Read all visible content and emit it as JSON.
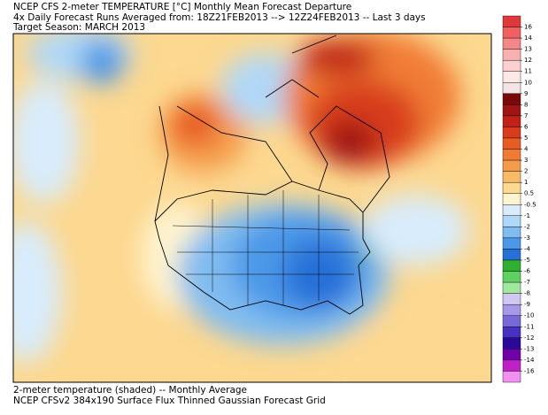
{
  "header": {
    "lines": [
      "NCEP CFS 2-meter TEMPERATURE [°C] Monthly Mean Forecast Departure",
      "4x Daily Forecast Runs Averaged from: 18Z21FEB2013 --> 12Z24FEB2013 -- Last 3 days",
      "Target Season: MARCH 2013"
    ]
  },
  "colorbar": {
    "labels": [
      16,
      14,
      13,
      12,
      11,
      10,
      9,
      8,
      7,
      6,
      5,
      4,
      3,
      2,
      1,
      0.5,
      -0.5,
      -1,
      -2,
      -3,
      -4,
      -5,
      -6,
      -7,
      -8,
      -9,
      -10,
      -11,
      -12,
      -13,
      -14,
      -16
    ],
    "colors": [
      "#e03838",
      "#f06060",
      "#f48888",
      "#f8b0b0",
      "#fcd0d0",
      "#fde8e8",
      "#f4e4e4",
      "#7a0a0a",
      "#a01414",
      "#c02018",
      "#d83c1c",
      "#e85c24",
      "#f07c34",
      "#f49c4c",
      "#f8bc68",
      "#fcd890",
      "#fff4d0",
      "#d8ecfc",
      "#b0d8f8",
      "#80bcf0",
      "#4c98e8",
      "#2870d8",
      "#30b030",
      "#60d060",
      "#a0e8a0",
      "#d0c8f0",
      "#a898e8",
      "#7868d8",
      "#4830c0",
      "#2a0898",
      "#7000a8",
      "#c020c8",
      "#f090f0"
    ]
  },
  "footer": {
    "lines": [
      "2-meter temperature (shaded) -- Monthly Average",
      "NCEP CFSv2 384x190 Surface Flux Thinned Gaussian Forecast Grid"
    ]
  }
}
